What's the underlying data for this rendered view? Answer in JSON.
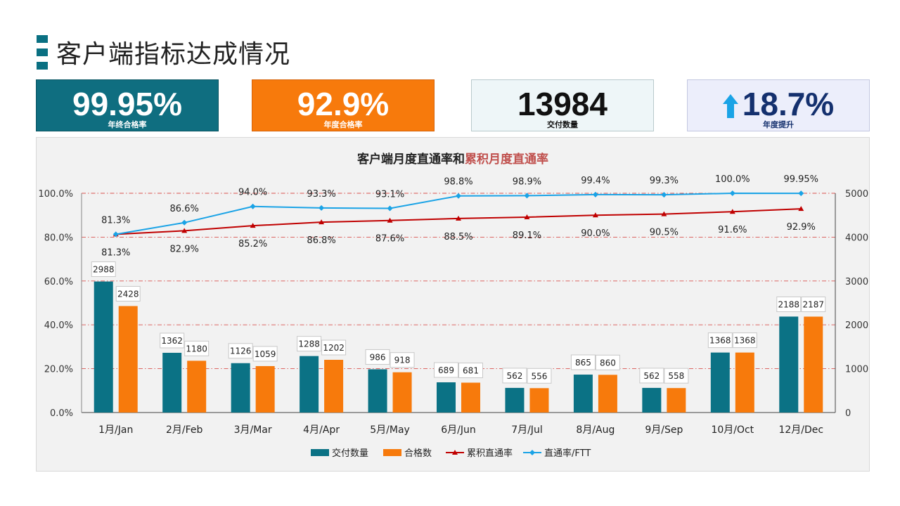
{
  "page_title": "客户端指标达成情况",
  "kpis": [
    {
      "value": "99.95%",
      "label": "年终合格率"
    },
    {
      "value": "92.9%",
      "label": "年度合格率"
    },
    {
      "value": "13984",
      "label": "交付数量"
    },
    {
      "value": "18.7%",
      "label": "年度提升",
      "icon": "arrow-up-icon"
    }
  ],
  "colors": {
    "teal": "#0b7285",
    "orange": "#f77a0c",
    "red": "#c00000",
    "blue": "#1aa3e6",
    "title_red": "#c0504d"
  },
  "chart_data": {
    "type": "bar",
    "title_part1": "客户端月度直通率和",
    "title_part2": "累积月度直通率",
    "categories": [
      "1月/Jan",
      "2月/Feb",
      "3月/Mar",
      "4月/Apr",
      "5月/May",
      "6月/Jun",
      "7月/Jul",
      "8月/Aug",
      "9月/Sep",
      "10月/Oct",
      "12月/Dec"
    ],
    "left_axis": {
      "ylim": [
        0,
        100
      ],
      "ticks": [
        "0.0%",
        "20.0%",
        "40.0%",
        "60.0%",
        "80.0%",
        "100.0%"
      ]
    },
    "right_axis": {
      "ylim": [
        0,
        5000
      ],
      "ticks": [
        "0",
        "1000",
        "2000",
        "3000",
        "4000",
        "5000"
      ]
    },
    "grid": "dash-dot red horizontal",
    "legend_position": "bottom",
    "series": [
      {
        "name": "交付数量",
        "type": "bar",
        "axis": "right",
        "values": [
          2988,
          1362,
          1126,
          1288,
          986,
          689,
          562,
          865,
          562,
          1368,
          2188
        ]
      },
      {
        "name": "合格数",
        "type": "bar",
        "axis": "right",
        "values": [
          2428,
          1180,
          1059,
          1202,
          918,
          681,
          556,
          860,
          558,
          1368,
          2187
        ]
      },
      {
        "name": "累积直通率",
        "type": "line",
        "axis": "left",
        "values": [
          81.3,
          82.9,
          85.2,
          86.8,
          87.6,
          88.5,
          89.1,
          90.0,
          90.5,
          91.6,
          92.9
        ],
        "labels": [
          "81.3%",
          "82.9%",
          "85.2%",
          "86.8%",
          "87.6%",
          "88.5%",
          "89.1%",
          "90.0%",
          "90.5%",
          "91.6%",
          "92.9%"
        ]
      },
      {
        "name": "直通率/FTT",
        "type": "line",
        "axis": "left",
        "values": [
          81.3,
          86.6,
          94.0,
          93.3,
          93.1,
          98.8,
          98.9,
          99.4,
          99.3,
          100.0,
          99.95
        ],
        "labels": [
          "81.3%",
          "86.6%",
          "94.0%",
          "93.3%",
          "93.1%",
          "98.8%",
          "98.9%",
          "99.4%",
          "99.3%",
          "100.0%",
          "99.95%"
        ]
      }
    ],
    "bar_value_labels": {
      "交付数量": [
        "2988",
        "1362",
        "1126",
        "1288",
        "986",
        "689",
        "562",
        "865",
        "562",
        "1368",
        "2188"
      ],
      "合格数": [
        "2428",
        "1180",
        "1059",
        "1202",
        "918",
        "681",
        "556",
        "860",
        "558",
        "1368",
        "2187"
      ]
    }
  }
}
